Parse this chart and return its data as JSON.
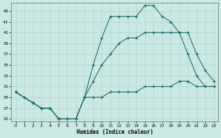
{
  "xlabel": "Humidex (Indice chaleur)",
  "bg_color": "#cce8e4",
  "grid_color": "#b0d0cc",
  "line_color": "#1a6b6b",
  "xlim": [
    -0.5,
    23.5
  ],
  "ylim": [
    24.5,
    46.5
  ],
  "yticks": [
    25,
    27,
    29,
    31,
    33,
    35,
    37,
    39,
    41,
    43,
    45
  ],
  "xticks": [
    0,
    1,
    2,
    3,
    4,
    5,
    6,
    7,
    8,
    9,
    10,
    11,
    12,
    13,
    14,
    15,
    16,
    17,
    18,
    19,
    20,
    21,
    22,
    23
  ],
  "series1_x": [
    0,
    1,
    2,
    3,
    4,
    5,
    6,
    7,
    8,
    9,
    10,
    11,
    12,
    13,
    14,
    15,
    16,
    17,
    18,
    19,
    20,
    21,
    22,
    23
  ],
  "series1_y": [
    30,
    29,
    28,
    27,
    27,
    25,
    25,
    25,
    29,
    35,
    40,
    44,
    44,
    44,
    44,
    46,
    46,
    44,
    43,
    41,
    37,
    33,
    31,
    31
  ],
  "series2_x": [
    0,
    2,
    3,
    4,
    5,
    6,
    7,
    8,
    9,
    10,
    11,
    12,
    13,
    14,
    15,
    16,
    17,
    18,
    19,
    20,
    21,
    22,
    23
  ],
  "series2_y": [
    30,
    28,
    27,
    27,
    25,
    25,
    25,
    29,
    32,
    35,
    37,
    39,
    40,
    40,
    41,
    41,
    41,
    41,
    41,
    41,
    37,
    34,
    32
  ],
  "series3_x": [
    0,
    1,
    2,
    3,
    4,
    5,
    6,
    7,
    8,
    9,
    10,
    11,
    12,
    13,
    14,
    15,
    16,
    17,
    18,
    19,
    20,
    21,
    22,
    23
  ],
  "series3_y": [
    30,
    29,
    28,
    27,
    27,
    25,
    25,
    25,
    29,
    29,
    29,
    30,
    30,
    30,
    30,
    31,
    31,
    31,
    31,
    32,
    32,
    31,
    31,
    31
  ]
}
